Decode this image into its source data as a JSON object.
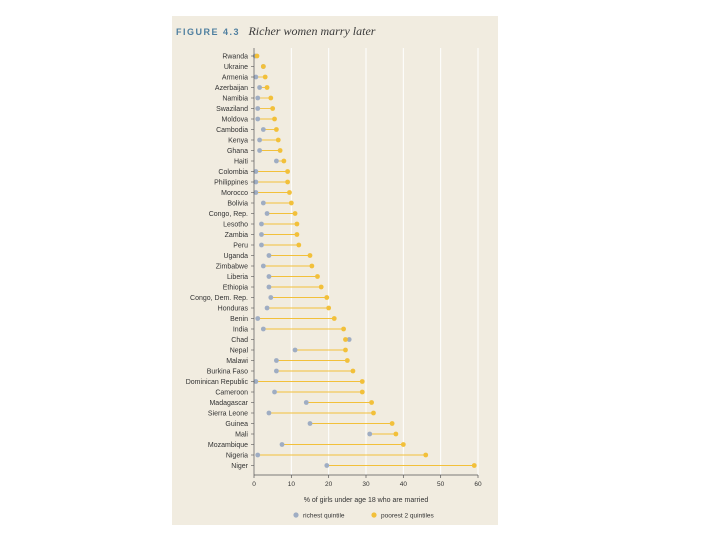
{
  "figure": {
    "label": "FIGURE 4.3",
    "title": "Richer women marry later"
  },
  "colors": {
    "panel": "#f1ece0",
    "richest": "#9fadc3",
    "poorest": "#f2c03a",
    "grid": "#ffffff"
  },
  "chart_data": {
    "type": "dumbbell",
    "xlabel": "% of girls under age 18 who are married",
    "xlim": [
      0,
      60
    ],
    "xticks": [
      0,
      10,
      20,
      30,
      40,
      50,
      60
    ],
    "legend": {
      "position": "bottom",
      "entries": [
        "richest quintile",
        "poorest 2 quintiles"
      ]
    },
    "categories": [
      "Rwanda",
      "Ukraine",
      "Armenia",
      "Azerbaijan",
      "Namibia",
      "Swaziland",
      "Moldova",
      "Cambodia",
      "Kenya",
      "Ghana",
      "Haiti",
      "Colombia",
      "Philippines",
      "Morocco",
      "Bolivia",
      "Congo, Rep.",
      "Lesotho",
      "Zambia",
      "Peru",
      "Uganda",
      "Zimbabwe",
      "Liberia",
      "Ethiopia",
      "Congo, Dem. Rep.",
      "Honduras",
      "Benin",
      "India",
      "Chad",
      "Nepal",
      "Malawi",
      "Burkina Faso",
      "Dominican Republic",
      "Cameroon",
      "Madagascar",
      "Sierra Leone",
      "Guinea",
      "Mali",
      "Mozambique",
      "Nigeria",
      "Niger"
    ],
    "series": [
      {
        "name": "richest quintile",
        "values": [
          0.3,
          2.5,
          0.5,
          1.5,
          1.0,
          1.0,
          1.0,
          2.5,
          1.5,
          1.5,
          6.0,
          0.5,
          0.5,
          0.5,
          2.5,
          3.5,
          2.0,
          2.0,
          2.0,
          4.0,
          2.5,
          4.0,
          4.0,
          4.5,
          3.5,
          1.0,
          2.5,
          25.5,
          11.0,
          6.0,
          6.0,
          0.5,
          5.5,
          14.0,
          4.0,
          15.0,
          31.0,
          7.5,
          1.0,
          19.5
        ]
      },
      {
        "name": "poorest 2 quintiles",
        "values": [
          0.8,
          2.5,
          3.0,
          3.5,
          4.5,
          5.0,
          5.5,
          6.0,
          6.5,
          7.0,
          8.0,
          9.0,
          9.0,
          9.5,
          10.0,
          11.0,
          11.5,
          11.5,
          12.0,
          15.0,
          15.5,
          17.0,
          18.0,
          19.5,
          20.0,
          21.5,
          24.0,
          24.5,
          24.5,
          25.0,
          26.5,
          29.0,
          29.0,
          31.5,
          32.0,
          37.0,
          38.0,
          40.0,
          46.0,
          59.0
        ]
      }
    ]
  }
}
